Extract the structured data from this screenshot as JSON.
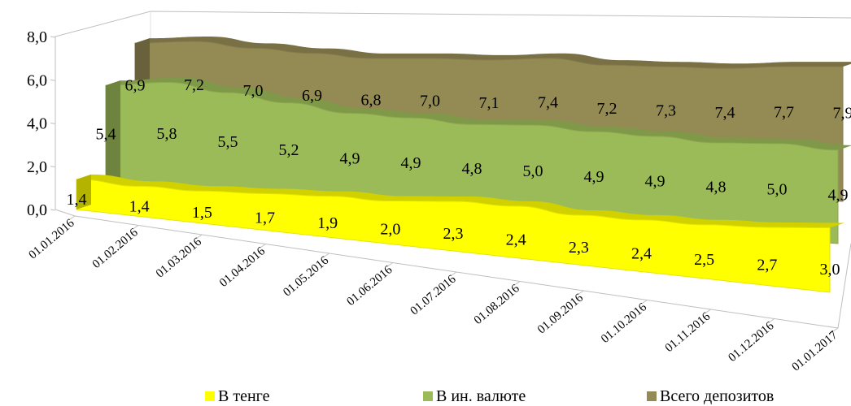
{
  "chart_data": {
    "type": "area",
    "categories": [
      "01.01.2016",
      "01.02.2016",
      "01.03.2016",
      "01.04.2016",
      "01.05.2016",
      "01.06.2016",
      "01.07.2016",
      "01.08.2016",
      "01.09.2016",
      "01.10.2016",
      "01.11.2016",
      "01.12.2016",
      "01.01.2017"
    ],
    "series": [
      {
        "name": "В тенге",
        "color": "#ffff00",
        "values": [
          1.4,
          1.4,
          1.5,
          1.7,
          1.9,
          2.0,
          2.3,
          2.4,
          2.3,
          2.4,
          2.5,
          2.7,
          3.0
        ],
        "labels": [
          "1,4",
          "1,4",
          "1,5",
          "1,7",
          "1,9",
          "2,0",
          "2,3",
          "2,4",
          "2,3",
          "2,4",
          "2,5",
          "2,7",
          "3,0"
        ]
      },
      {
        "name": "В ин. валюте",
        "color": "#9bbb59",
        "values": [
          5.4,
          5.8,
          5.5,
          5.2,
          4.9,
          4.9,
          4.8,
          5.0,
          4.9,
          4.9,
          4.8,
          5.0,
          4.9
        ],
        "labels": [
          "5,4",
          "5,8",
          "5,5",
          "5,2",
          "4,9",
          "4,9",
          "4,8",
          "5,0",
          "4,9",
          "4,9",
          "4,8",
          "5,0",
          "4,9"
        ]
      },
      {
        "name": "Всего депозитов",
        "color": "#948a54",
        "values": [
          6.9,
          7.2,
          7.0,
          6.9,
          6.8,
          7.0,
          7.1,
          7.4,
          7.2,
          7.3,
          7.4,
          7.7,
          7.9
        ],
        "labels": [
          "6,9",
          "7,2",
          "7,0",
          "6,9",
          "6,8",
          "7,0",
          "7,1",
          "7,4",
          "7,2",
          "7,3",
          "7,4",
          "7,7",
          "7,9"
        ]
      }
    ],
    "y_ticks": [
      "0,0",
      "2,0",
      "4,0",
      "6,0",
      "8,0"
    ],
    "ylim": [
      0,
      8
    ],
    "legend_position": "bottom",
    "grid": false,
    "three_d": true
  }
}
